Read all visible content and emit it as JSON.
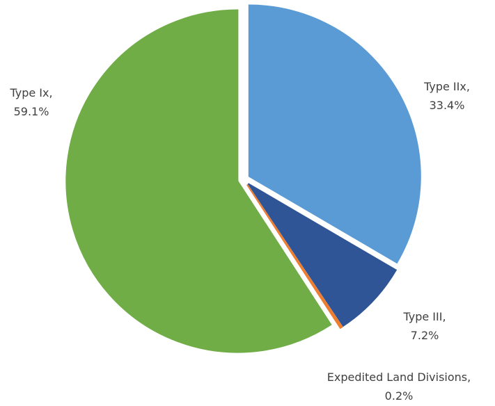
{
  "chart_data": {
    "type": "pie",
    "categories": [
      "Type IIx,",
      "Type III,",
      "Expedited Land Divisions,",
      "Type Ix,"
    ],
    "values": [
      33.4,
      7.2,
      0.2,
      59.1
    ],
    "value_labels": [
      "33.4%",
      "7.2%",
      "0.2%",
      "59.1%"
    ],
    "colors": [
      "#5b9bd5",
      "#2f5597",
      "#ed7d31",
      "#70ad47"
    ]
  }
}
